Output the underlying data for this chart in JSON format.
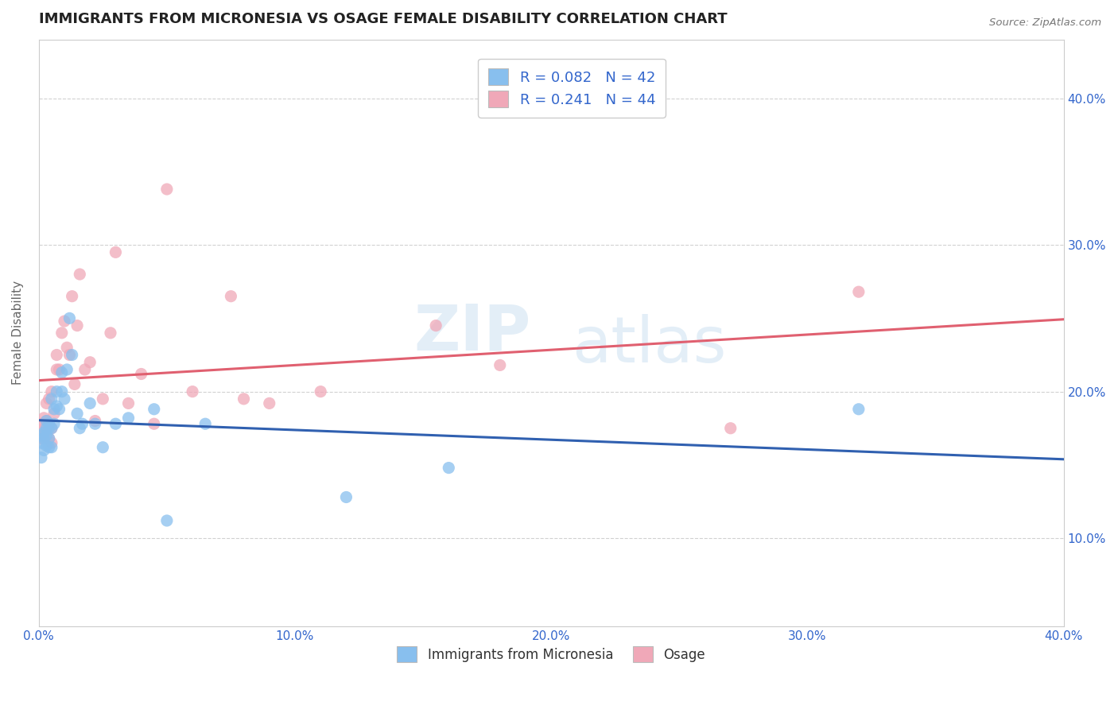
{
  "title": "IMMIGRANTS FROM MICRONESIA VS OSAGE FEMALE DISABILITY CORRELATION CHART",
  "source": "Source: ZipAtlas.com",
  "ylabel": "Female Disability",
  "xlim": [
    0.0,
    0.4
  ],
  "ylim": [
    0.04,
    0.44
  ],
  "ytick_labels": [
    "10.0%",
    "20.0%",
    "30.0%",
    "40.0%"
  ],
  "ytick_values": [
    0.1,
    0.2,
    0.3,
    0.4
  ],
  "xtick_labels": [
    "0.0%",
    "10.0%",
    "20.0%",
    "30.0%",
    "40.0%"
  ],
  "xtick_values": [
    0.0,
    0.1,
    0.2,
    0.3,
    0.4
  ],
  "blue_color": "#88BFEE",
  "pink_color": "#F0A8B8",
  "blue_line_color": "#3060B0",
  "pink_line_color": "#E06070",
  "legend_text_color": "#3366CC",
  "r_blue": 0.082,
  "n_blue": 42,
  "r_pink": 0.241,
  "n_pink": 44,
  "blue_scatter_x": [
    0.001,
    0.001,
    0.001,
    0.002,
    0.002,
    0.002,
    0.003,
    0.003,
    0.003,
    0.003,
    0.004,
    0.004,
    0.004,
    0.004,
    0.005,
    0.005,
    0.005,
    0.006,
    0.006,
    0.007,
    0.007,
    0.008,
    0.009,
    0.009,
    0.01,
    0.011,
    0.012,
    0.013,
    0.015,
    0.016,
    0.017,
    0.02,
    0.022,
    0.025,
    0.03,
    0.035,
    0.045,
    0.05,
    0.065,
    0.12,
    0.16,
    0.32
  ],
  "blue_scatter_y": [
    0.165,
    0.17,
    0.155,
    0.168,
    0.172,
    0.16,
    0.175,
    0.163,
    0.17,
    0.18,
    0.162,
    0.175,
    0.168,
    0.178,
    0.195,
    0.162,
    0.175,
    0.178,
    0.188,
    0.2,
    0.19,
    0.188,
    0.2,
    0.213,
    0.195,
    0.215,
    0.25,
    0.225,
    0.185,
    0.175,
    0.178,
    0.192,
    0.178,
    0.162,
    0.178,
    0.182,
    0.188,
    0.112,
    0.178,
    0.128,
    0.148,
    0.188
  ],
  "pink_scatter_x": [
    0.001,
    0.001,
    0.002,
    0.002,
    0.002,
    0.003,
    0.003,
    0.003,
    0.004,
    0.004,
    0.005,
    0.005,
    0.005,
    0.006,
    0.007,
    0.007,
    0.008,
    0.009,
    0.01,
    0.011,
    0.012,
    0.013,
    0.014,
    0.015,
    0.016,
    0.018,
    0.02,
    0.022,
    0.025,
    0.028,
    0.03,
    0.035,
    0.04,
    0.045,
    0.05,
    0.06,
    0.075,
    0.08,
    0.09,
    0.11,
    0.155,
    0.18,
    0.27,
    0.32
  ],
  "pink_scatter_y": [
    0.168,
    0.178,
    0.17,
    0.182,
    0.175,
    0.18,
    0.175,
    0.192,
    0.168,
    0.195,
    0.165,
    0.175,
    0.2,
    0.185,
    0.225,
    0.215,
    0.215,
    0.24,
    0.248,
    0.23,
    0.225,
    0.265,
    0.205,
    0.245,
    0.28,
    0.215,
    0.22,
    0.18,
    0.195,
    0.24,
    0.295,
    0.192,
    0.212,
    0.178,
    0.338,
    0.2,
    0.265,
    0.195,
    0.192,
    0.2,
    0.245,
    0.218,
    0.175,
    0.268
  ],
  "background_color": "#FFFFFF",
  "grid_color": "#CCCCCC",
  "watermark_zip": "ZIP",
  "watermark_atlas": "atlas",
  "title_fontsize": 13,
  "label_fontsize": 11
}
